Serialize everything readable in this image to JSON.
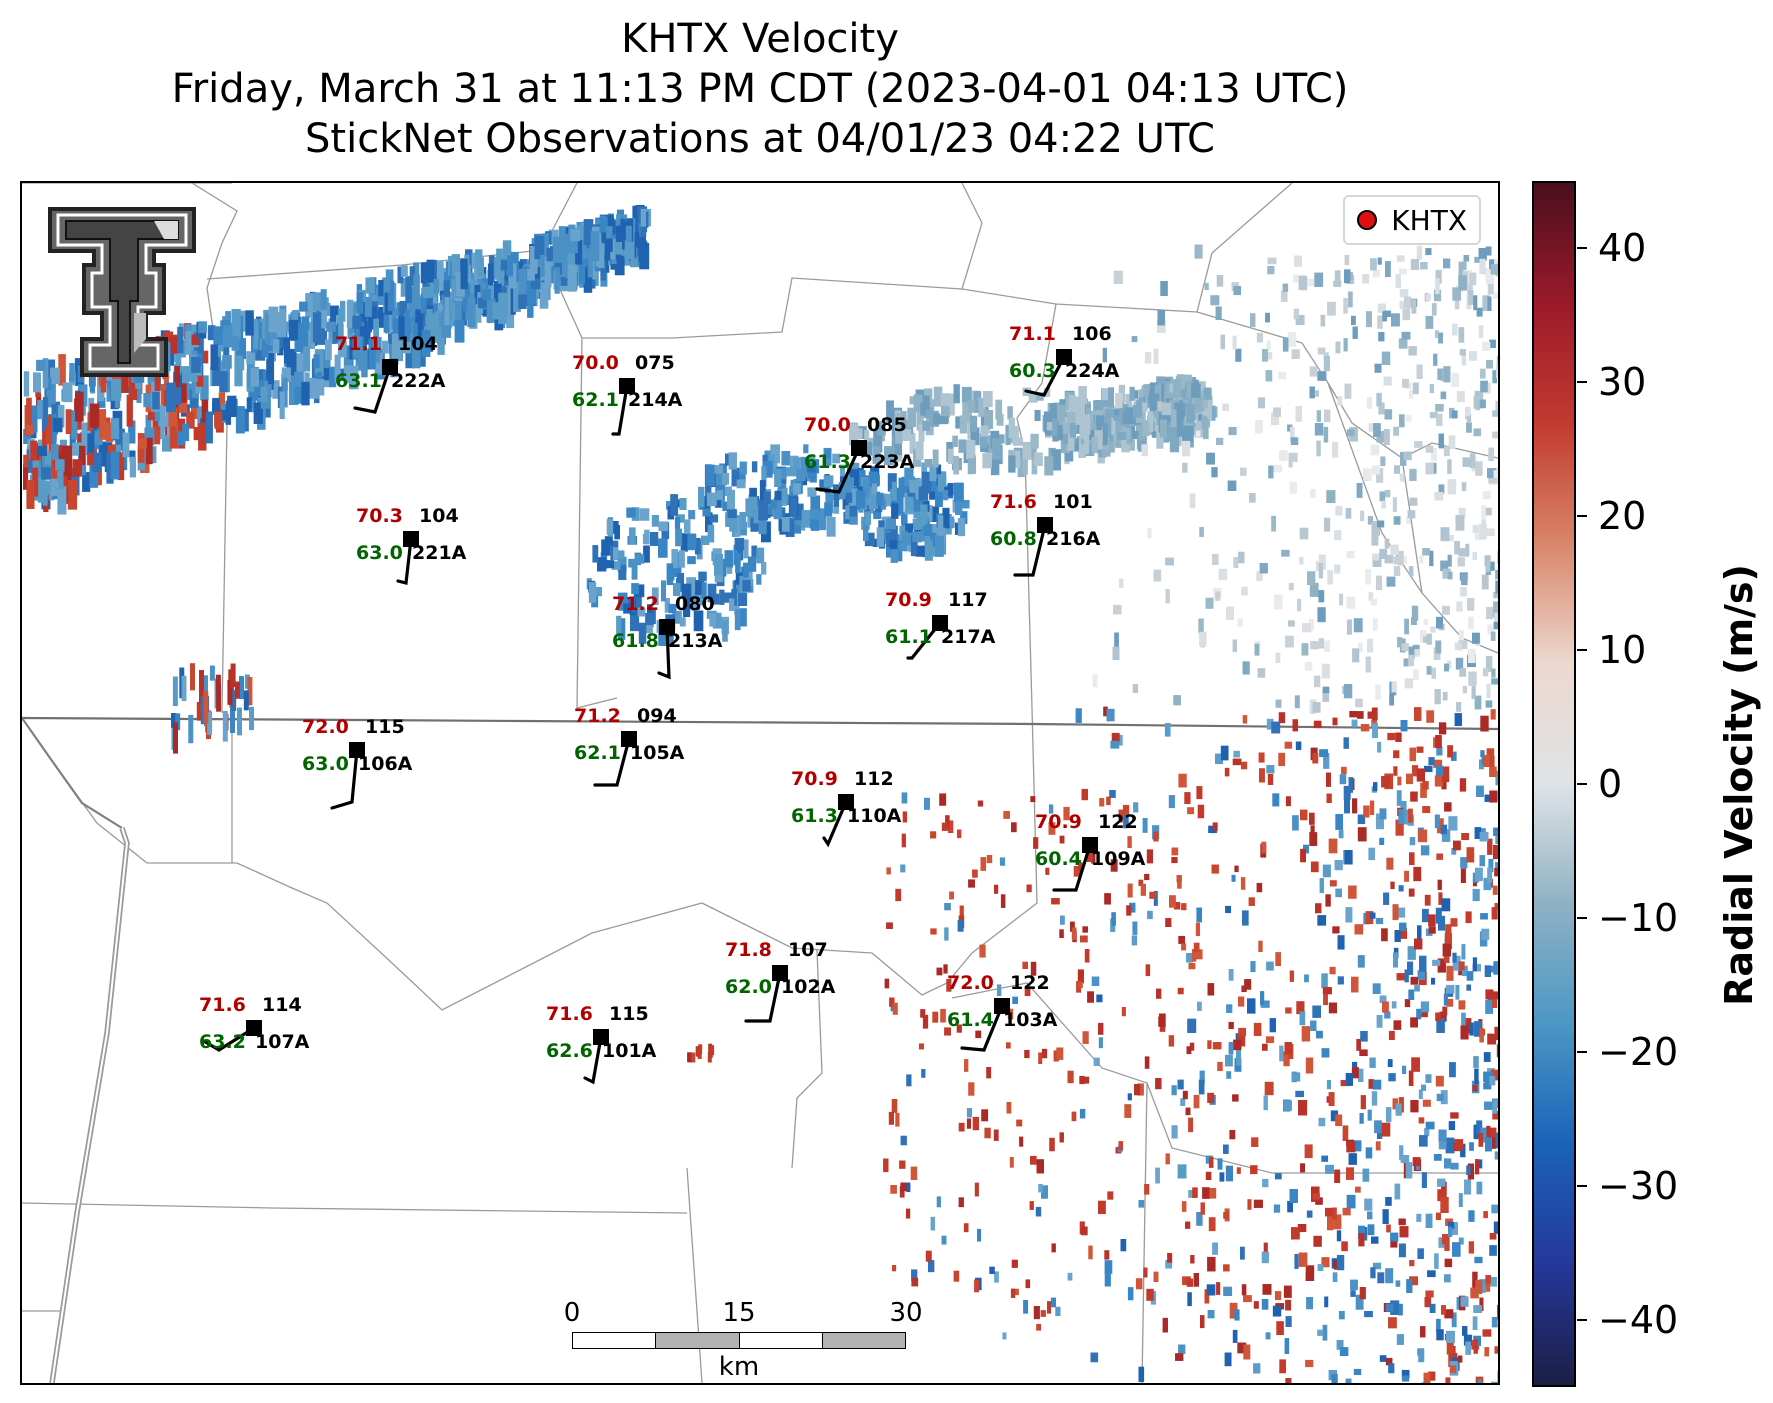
{
  "title": {
    "line1": "KHTX Velocity",
    "line2": "Friday, March 31 at 11:13 PM CDT (2023-04-01 04:13 UTC)",
    "line3": "StickNet Observations at 04/01/23 04:22 UTC"
  },
  "legend": {
    "label": "KHTX",
    "marker_color": "#e01010"
  },
  "logo": {
    "name": "Texas Tech double-T logo",
    "text": "T"
  },
  "stations": [
    {
      "id": "222A",
      "temp": "71.1",
      "dew": "63.1",
      "pres": "104"
    },
    {
      "id": "214A",
      "temp": "70.0",
      "dew": "62.1",
      "pres": "075"
    },
    {
      "id": "224A",
      "temp": "71.1",
      "dew": "60.3",
      "pres": "106"
    },
    {
      "id": "223A",
      "temp": "70.0",
      "dew": "61.3",
      "pres": "085"
    },
    {
      "id": "221A",
      "temp": "70.3",
      "dew": "63.0",
      "pres": "104"
    },
    {
      "id": "216A",
      "temp": "71.6",
      "dew": "60.8",
      "pres": "101"
    },
    {
      "id": "213A",
      "temp": "71.2",
      "dew": "61.8",
      "pres": "080"
    },
    {
      "id": "217A",
      "temp": "70.9",
      "dew": "61.1",
      "pres": "117"
    },
    {
      "id": "106A",
      "temp": "72.0",
      "dew": "63.0",
      "pres": "115"
    },
    {
      "id": "105A",
      "temp": "71.2",
      "dew": "62.1",
      "pres": "094"
    },
    {
      "id": "110A",
      "temp": "70.9",
      "dew": "61.3",
      "pres": "112"
    },
    {
      "id": "109A",
      "temp": "70.9",
      "dew": "60.4",
      "pres": "122"
    },
    {
      "id": "102A",
      "temp": "71.8",
      "dew": "62.0",
      "pres": "107"
    },
    {
      "id": "103A",
      "temp": "72.0",
      "dew": "61.4",
      "pres": "122"
    },
    {
      "id": "107A",
      "temp": "71.6",
      "dew": "63.2",
      "pres": "114"
    },
    {
      "id": "101A",
      "temp": "71.6",
      "dew": "62.6",
      "pres": "115"
    }
  ],
  "scalebar": {
    "ticks": [
      "0",
      "15",
      "30"
    ],
    "unit": "km"
  },
  "colorbar": {
    "title": "Radial Velocity (m/s)",
    "ticks": [
      "40",
      "30",
      "20",
      "10",
      "0",
      "−10",
      "−20",
      "−30",
      "−40"
    ],
    "range": [
      -45,
      45
    ],
    "colors": [
      "#4a0f1e",
      "#9a1a2a",
      "#c23a30",
      "#d8866a",
      "#ecd8cf",
      "#dfe3e6",
      "#8fb1c4",
      "#4b97c4",
      "#1a62b8",
      "#25389a",
      "#1b1f45"
    ]
  }
}
